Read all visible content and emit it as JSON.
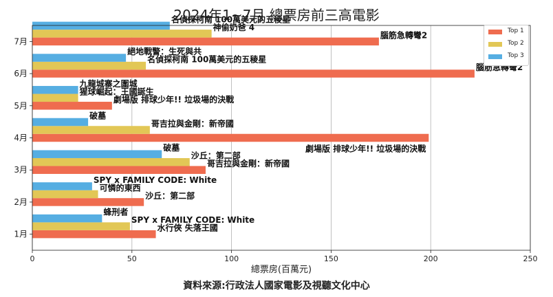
{
  "chart_data": {
    "type": "bar",
    "orientation": "horizontal",
    "title": "2024年1~7月 總票房前三高電影",
    "xlabel": "總票房(百萬元)",
    "ylabel": "",
    "xlim": [
      0,
      250
    ],
    "xticks": [
      0,
      50,
      100,
      150,
      200,
      250
    ],
    "grid": "x",
    "legend": "top-right",
    "categories": [
      "1月",
      "2月",
      "3月",
      "4月",
      "5月",
      "6月",
      "7月"
    ],
    "series": [
      {
        "name": "Top 1",
        "color": "#EF6C4F",
        "values": [
          62,
          56,
          87,
          199,
          40,
          222,
          174
        ],
        "labels": [
          "水行俠 失落王國",
          "沙丘：第二部",
          "哥吉拉與金剛：新帝國",
          "劇場版 排球少年!! 垃圾場的決戰",
          "劇場版 排球少年!! 垃圾場的決戰",
          "腦筋急轉彎2",
          "腦筋急轉彎2"
        ]
      },
      {
        "name": "Top 2",
        "color": "#E2C756",
        "values": [
          49,
          33,
          79,
          59,
          23,
          57,
          90
        ],
        "labels": [
          "SPY x FAMILY CODE: White",
          "可憐的東西",
          "沙丘：第二部",
          "哥吉拉與金剛：新帝國",
          "猩球崛起：王國誕生",
          "名偵探柯南 100萬美元的五稜星",
          "神偷奶爸 4"
        ]
      },
      {
        "name": "Top 3",
        "color": "#56AEE2",
        "values": [
          35,
          30,
          65,
          28,
          23,
          47,
          69
        ],
        "labels": [
          "蜂刑者",
          "SPY x FAMILY CODE: White",
          "破墓",
          "破墓",
          "九龍城寨之圍城",
          "絕地戰警：生死與共",
          "名偵探柯南 100萬美元的五稜星"
        ]
      }
    ]
  },
  "source": "資料來源:行政法人國家電影及視聽文化中心"
}
